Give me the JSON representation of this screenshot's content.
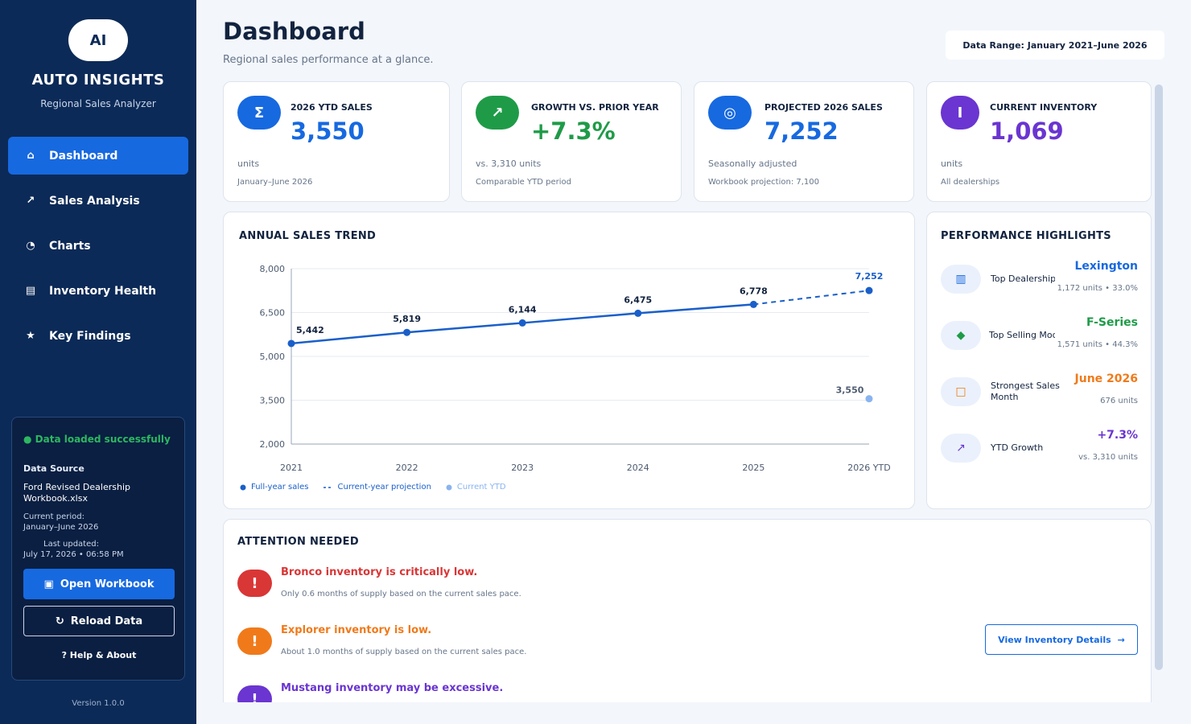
{
  "sidebar": {
    "logo": "AI",
    "title": "AUTO INSIGHTS",
    "subtitle": "Regional Sales Analyzer",
    "nav": [
      {
        "icon": "⌂",
        "label": "Dashboard"
      },
      {
        "icon": "↗",
        "label": "Sales Analysis"
      },
      {
        "icon": "◔",
        "label": "Charts"
      },
      {
        "icon": "▤",
        "label": "Inventory Health"
      },
      {
        "icon": "★",
        "label": "Key Findings"
      }
    ],
    "status": "● Data loaded successfully",
    "data_source_label": "Data Source",
    "file_name": "Ford Revised Dealership Workbook.xlsx",
    "period_label": "Current period:",
    "period_value": "January–June 2026",
    "updated_label": "Last updated:",
    "updated_value": "July 17, 2026 • 06:58 PM",
    "open_button": "Open Workbook",
    "open_icon": "▣",
    "reload_button": "Reload Data",
    "reload_icon": "↻",
    "help_link": "?  Help & About",
    "version": "Version 1.0.0"
  },
  "header": {
    "title": "Dashboard",
    "subtitle": "Regional sales performance at a glance.",
    "range": "Data Range: January 2021–June 2026"
  },
  "kpis": [
    {
      "icon": "Σ",
      "label": "2026 YTD SALES",
      "value": "3,550",
      "unit": "units",
      "foot": "January–June 2026",
      "color": "#1769e0"
    },
    {
      "icon": "↗",
      "label": "GROWTH VS. PRIOR YEAR",
      "value": "+7.3%",
      "unit": "vs. 3,310 units",
      "foot": "Comparable YTD period",
      "color": "#1f9b48"
    },
    {
      "icon": "◎",
      "label": "PROJECTED 2026 SALES",
      "value": "7,252",
      "unit": "Seasonally adjusted",
      "foot": "Workbook projection: 7,100",
      "color": "#1769e0"
    },
    {
      "icon": "I",
      "label": "CURRENT INVENTORY",
      "value": "1,069",
      "unit": "units",
      "foot": "All dealerships",
      "color": "#6a35d1"
    }
  ],
  "trend": {
    "title": "ANNUAL SALES TREND",
    "legend": [
      "Full-year sales",
      "Current-year projection",
      "Current YTD"
    ]
  },
  "chart_data": {
    "type": "line",
    "categories": [
      "2021",
      "2022",
      "2023",
      "2024",
      "2025",
      "2026 YTD"
    ],
    "series": [
      {
        "name": "Full-year sales",
        "values": [
          5442,
          5819,
          6144,
          6475,
          6778,
          null
        ]
      },
      {
        "name": "Current-year projection",
        "values": [
          null,
          null,
          null,
          null,
          6778,
          7252
        ]
      },
      {
        "name": "Current YTD",
        "values": [
          null,
          null,
          null,
          null,
          null,
          3550
        ]
      }
    ],
    "data_labels": [
      "5,442",
      "5,819",
      "6,144",
      "6,475",
      "6,778",
      "7,252",
      "3,550"
    ],
    "y_ticks": [
      "2,000",
      "3,500",
      "5,000",
      "6,500",
      "8,000"
    ],
    "ylim": [
      2000,
      8000
    ],
    "grid": true,
    "legend_position": "bottom-left"
  },
  "highlights": {
    "title": "PERFORMANCE HIGHLIGHTS",
    "items": [
      {
        "icon": "▥",
        "label": "Top Dealership",
        "value": "Lexington",
        "sub": "1,172 units • 33.0%",
        "color": "#1769e0"
      },
      {
        "icon": "◆",
        "label": "Top Selling Model",
        "value": "F-Series",
        "sub": "1,571 units • 44.3%",
        "color": "#1f9b48"
      },
      {
        "icon": "□",
        "label": "Strongest Sales Month",
        "value": "June 2026",
        "sub": "676 units",
        "color": "#f07a1a"
      },
      {
        "icon": "↗",
        "label": "YTD Growth",
        "value": "+7.3%",
        "sub": "vs. 3,310 units",
        "color": "#6a35d1"
      }
    ]
  },
  "attention": {
    "title": "ATTENTION NEEDED",
    "items": [
      {
        "icon": "!",
        "title": "Bronco inventory is critically low.",
        "desc": "Only 0.6 months of supply based on the current sales pace.",
        "color": "#d93636"
      },
      {
        "icon": "!",
        "title": "Explorer inventory is low.",
        "desc": "About 1.0 months of supply based on the current sales pace.",
        "color": "#f07a1a"
      },
      {
        "icon": "!",
        "title": "Mustang inventory may be excessive.",
        "desc": "",
        "color": "#6a35d1"
      }
    ],
    "button": "View Inventory Details",
    "button_arrow": "→"
  }
}
